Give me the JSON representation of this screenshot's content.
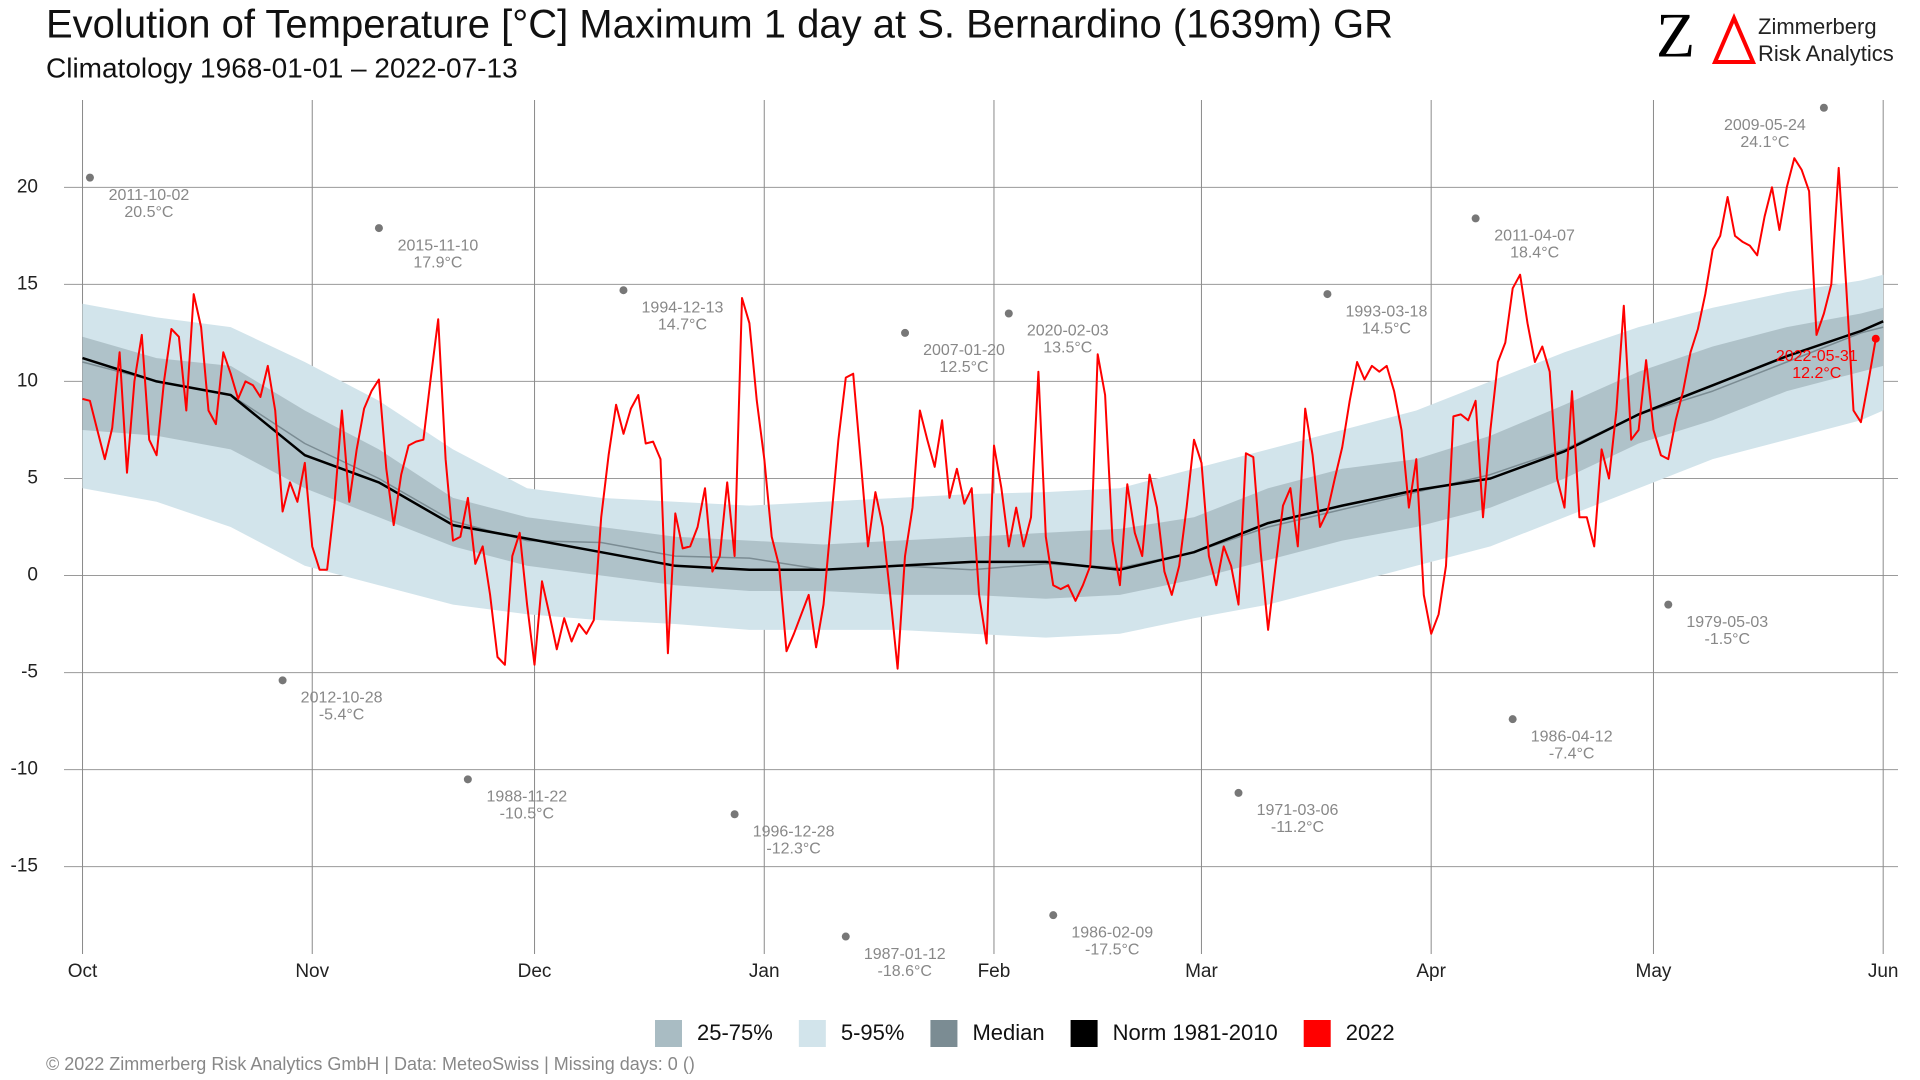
{
  "title": "Evolution of Temperature [°C] Maximum 1 day at S. Bernardino (1639m) GR",
  "subtitle": "Climatology 1968-01-01 – 2022-07-13",
  "logo": {
    "mark": "Z",
    "line1": "Zimmerberg",
    "line2": "Risk Analytics"
  },
  "footer": "©  2022 Zimmerberg Risk Analytics GmbH | Data: MeteoSwiss | Missing days: 0 ()",
  "chart_data": {
    "type": "line",
    "xlim": [
      -2.5,
      245
    ],
    "ylim": [
      -19.5,
      24.5
    ],
    "xticks": [
      {
        "value": 0,
        "label": "Oct"
      },
      {
        "value": 31,
        "label": "Nov"
      },
      {
        "value": 61,
        "label": "Dec"
      },
      {
        "value": 92,
        "label": "Jan"
      },
      {
        "value": 123,
        "label": "Feb"
      },
      {
        "value": 151,
        "label": "Mar"
      },
      {
        "value": 182,
        "label": "Apr"
      },
      {
        "value": 212,
        "label": "May"
      },
      {
        "value": 243,
        "label": "Jun"
      }
    ],
    "yticks": [
      -15,
      -10,
      -5,
      0,
      5,
      10,
      15,
      20
    ],
    "grid": true,
    "bands": [
      {
        "name": "5-95%",
        "color": "#d2e4eb",
        "x": [
          0,
          10,
          20,
          30,
          40,
          50,
          60,
          70,
          80,
          90,
          100,
          110,
          120,
          130,
          140,
          150,
          160,
          170,
          180,
          190,
          200,
          210,
          220,
          230,
          240,
          243
        ],
        "lower": [
          4.5,
          3.8,
          2.5,
          0.5,
          -0.5,
          -1.5,
          -2.0,
          -2.3,
          -2.5,
          -2.8,
          -2.8,
          -2.8,
          -3.0,
          -3.2,
          -3.0,
          -2.2,
          -1.5,
          -0.5,
          0.5,
          1.5,
          3.0,
          4.5,
          6.0,
          7.0,
          8.0,
          8.5
        ],
        "upper": [
          14.0,
          13.3,
          12.8,
          11.0,
          9.0,
          6.5,
          4.5,
          4.0,
          3.8,
          3.6,
          3.8,
          4.0,
          4.2,
          4.3,
          4.5,
          5.5,
          6.5,
          7.5,
          8.5,
          10.0,
          11.5,
          12.8,
          13.8,
          14.6,
          15.2,
          15.5
        ]
      },
      {
        "name": "25-75%",
        "color": "#a9bcc3",
        "x": [
          0,
          10,
          20,
          30,
          40,
          50,
          60,
          70,
          80,
          90,
          100,
          110,
          120,
          130,
          140,
          150,
          160,
          170,
          180,
          190,
          200,
          210,
          220,
          230,
          240,
          243
        ],
        "lower": [
          7.5,
          7.2,
          6.5,
          4.5,
          3.0,
          1.5,
          0.5,
          0.0,
          -0.5,
          -0.8,
          -0.8,
          -1.0,
          -1.0,
          -1.2,
          -1.0,
          -0.2,
          0.8,
          1.8,
          2.5,
          3.5,
          5.0,
          6.8,
          8.0,
          9.5,
          10.5,
          10.8
        ],
        "upper": [
          12.3,
          11.2,
          10.8,
          8.5,
          6.5,
          4.0,
          3.0,
          2.5,
          2.0,
          1.8,
          1.6,
          1.8,
          2.0,
          2.2,
          2.4,
          3.0,
          4.5,
          5.5,
          6.0,
          7.2,
          8.8,
          10.5,
          11.8,
          12.8,
          13.5,
          13.8
        ]
      }
    ],
    "series": [
      {
        "name": "Median",
        "color": "#7b8c93",
        "width": 1.5,
        "x": [
          0,
          10,
          20,
          30,
          40,
          50,
          60,
          70,
          80,
          90,
          100,
          110,
          120,
          130,
          140,
          150,
          160,
          170,
          180,
          190,
          200,
          210,
          220,
          230,
          240,
          243
        ],
        "values": [
          11.0,
          10.0,
          9.3,
          6.8,
          5.0,
          2.8,
          1.8,
          1.7,
          1.0,
          0.9,
          0.3,
          0.5,
          0.3,
          0.6,
          0.4,
          1.2,
          2.5,
          3.4,
          4.3,
          5.2,
          6.5,
          8.3,
          9.5,
          11.0,
          12.5,
          12.8
        ]
      },
      {
        "name": "Norm 1981-2010",
        "color": "#000000",
        "width": 2.5,
        "x": [
          0,
          10,
          20,
          30,
          40,
          50,
          60,
          70,
          80,
          90,
          100,
          110,
          120,
          130,
          140,
          150,
          160,
          170,
          180,
          190,
          200,
          210,
          220,
          230,
          240,
          243
        ],
        "values": [
          11.2,
          10.0,
          9.3,
          6.2,
          4.8,
          2.6,
          1.9,
          1.2,
          0.5,
          0.3,
          0.3,
          0.5,
          0.7,
          0.7,
          0.3,
          1.2,
          2.7,
          3.6,
          4.4,
          5.0,
          6.4,
          8.3,
          9.8,
          11.3,
          12.6,
          13.1
        ]
      },
      {
        "name": "2022",
        "color": "#ff0000",
        "width": 2,
        "x": [
          0,
          1,
          2,
          3,
          4,
          5,
          6,
          7,
          8,
          9,
          10,
          11,
          12,
          13,
          14,
          15,
          16,
          17,
          18,
          19,
          20,
          21,
          22,
          23,
          24,
          25,
          26,
          27,
          28,
          29,
          30,
          31,
          32,
          33,
          34,
          35,
          36,
          37,
          38,
          39,
          40,
          41,
          42,
          43,
          44,
          45,
          46,
          47,
          48,
          49,
          50,
          51,
          52,
          53,
          54,
          55,
          56,
          57,
          58,
          59,
          60,
          61,
          62,
          63,
          64,
          65,
          66,
          67,
          68,
          69,
          70,
          71,
          72,
          73,
          74,
          75,
          76,
          77,
          78,
          79,
          80,
          81,
          82,
          83,
          84,
          85,
          86,
          87,
          88,
          89,
          90,
          91,
          92,
          93,
          94,
          95,
          96,
          97,
          98,
          99,
          100,
          101,
          102,
          103,
          104,
          105,
          106,
          107,
          108,
          109,
          110,
          111,
          112,
          113,
          114,
          115,
          116,
          117,
          118,
          119,
          120,
          121,
          122,
          123,
          124,
          125,
          126,
          127,
          128,
          129,
          130,
          131,
          132,
          133,
          134,
          135,
          136,
          137,
          138,
          139,
          140,
          141,
          142,
          143,
          144,
          145,
          146,
          147,
          148,
          149,
          150,
          151,
          152,
          153,
          154,
          155,
          156,
          157,
          158,
          159,
          160,
          161,
          162,
          163,
          164,
          165,
          166,
          167,
          168,
          169,
          170,
          171,
          172,
          173,
          174,
          175,
          176,
          177,
          178,
          179,
          180,
          181,
          182,
          183,
          184,
          185,
          186,
          187,
          188,
          189,
          190,
          191,
          192,
          193,
          194,
          195,
          196,
          197,
          198,
          199,
          200,
          201,
          202,
          203,
          204,
          205,
          206,
          207,
          208,
          209,
          210,
          211,
          212,
          213,
          214,
          215,
          216,
          217,
          218,
          219,
          220,
          221,
          222,
          223,
          224,
          225,
          226,
          227,
          228,
          229,
          230,
          231,
          232,
          233,
          234,
          235,
          236,
          237,
          238,
          239,
          240,
          241,
          242
        ],
        "values": [
          9.1,
          9.0,
          7.5,
          6.0,
          7.6,
          11.5,
          5.3,
          10.0,
          12.4,
          7.0,
          6.2,
          10.0,
          12.7,
          12.3,
          8.5,
          14.5,
          12.8,
          8.5,
          7.8,
          11.5,
          10.4,
          9.1,
          10.0,
          9.8,
          9.2,
          10.8,
          8.5,
          3.3,
          4.8,
          3.8,
          5.8,
          1.5,
          0.3,
          0.3,
          3.7,
          8.5,
          3.8,
          6.5,
          8.6,
          9.5,
          10.1,
          5.5,
          2.6,
          5.2,
          6.7,
          6.9,
          7.0,
          10.2,
          13.2,
          6.0,
          1.8,
          2.0,
          4.0,
          0.6,
          1.5,
          -1.0,
          -4.2,
          -4.6,
          1.0,
          2.2,
          -1.5,
          -4.6,
          -0.3,
          -2.0,
          -3.8,
          -2.2,
          -3.4,
          -2.5,
          -3.0,
          -2.3,
          3.0,
          6.2,
          8.8,
          7.3,
          8.6,
          9.3,
          6.8,
          6.9,
          6.0,
          -4.0,
          3.2,
          1.4,
          1.5,
          2.5,
          4.5,
          0.2,
          1.0,
          4.8,
          1.0,
          14.3,
          13.0,
          9.0,
          6.0,
          2.0,
          0.5,
          -3.9,
          -3.0,
          -2.0,
          -1.0,
          -3.7,
          -1.5,
          2.7,
          7.0,
          10.2,
          10.4,
          6.0,
          1.5,
          4.3,
          2.5,
          -1.0,
          -4.8,
          1.0,
          3.5,
          8.5,
          7.0,
          5.6,
          8.0,
          4.0,
          5.5,
          3.7,
          4.5,
          -1.0,
          -3.5,
          6.7,
          4.5,
          1.5,
          3.5,
          1.5,
          3.0,
          10.5,
          2.0,
          -0.5,
          -0.7,
          -0.5,
          -1.3,
          -0.5,
          0.5,
          11.4,
          9.3,
          1.8,
          -0.5,
          4.7,
          2.2,
          1.0,
          5.2,
          3.5,
          0.2,
          -1.0,
          0.5,
          3.5,
          7.0,
          5.8,
          1.0,
          -0.5,
          1.5,
          0.5,
          -1.5,
          6.3,
          6.1,
          1.2,
          -2.8,
          0.5,
          3.6,
          4.5,
          1.5,
          8.6,
          6.2,
          2.5,
          3.3,
          5.0,
          6.6,
          9.0,
          11.0,
          10.1,
          10.8,
          10.5,
          10.8,
          9.5,
          7.5,
          3.5,
          6.0,
          -1.0,
          -3.0,
          -2.0,
          0.5,
          8.2,
          8.3,
          8.0,
          9.0,
          3.0,
          7.5,
          11.0,
          12.0,
          14.8,
          15.5,
          13.0,
          11.0,
          11.8,
          10.5,
          5.0,
          3.5,
          9.5,
          3.0,
          3.0,
          1.5,
          6.5,
          5.0,
          8.5,
          13.9,
          7.0,
          7.5,
          11.1,
          7.5,
          6.2,
          6.0,
          8.0,
          9.5,
          11.5,
          12.7,
          14.5,
          16.8,
          17.5,
          19.5,
          17.5,
          17.2,
          17.0,
          16.5,
          18.5,
          20.0,
          17.8,
          20.0,
          21.5,
          20.9,
          19.8,
          12.4,
          13.5,
          15.0,
          21.0,
          15.0,
          8.5,
          7.9,
          10.0,
          12.2
        ]
      }
    ],
    "record_color": "#777777",
    "records": [
      {
        "date": "2011-10-02",
        "x": 1,
        "value": 20.5,
        "value_label": "20.5°C"
      },
      {
        "date": "2012-10-28",
        "x": 27,
        "value": -5.4,
        "value_label": "-5.4°C"
      },
      {
        "date": "2015-11-10",
        "x": 40,
        "value": 17.9,
        "value_label": "17.9°C"
      },
      {
        "date": "1988-11-22",
        "x": 52,
        "value": -10.5,
        "value_label": "-10.5°C"
      },
      {
        "date": "1994-12-13",
        "x": 73,
        "value": 14.7,
        "value_label": "14.7°C"
      },
      {
        "date": "1996-12-28",
        "x": 88,
        "value": -12.3,
        "value_label": "-12.3°C"
      },
      {
        "date": "1987-01-12",
        "x": 103,
        "value": -18.6,
        "value_label": "-18.6°C"
      },
      {
        "date": "2007-01-20",
        "x": 111,
        "value": 12.5,
        "value_label": "12.5°C"
      },
      {
        "date": "2020-02-03",
        "x": 125,
        "value": 13.5,
        "value_label": "13.5°C"
      },
      {
        "date": "1986-02-09",
        "x": 131,
        "value": -17.5,
        "value_label": "-17.5°C"
      },
      {
        "date": "1971-03-06",
        "x": 156,
        "value": -11.2,
        "value_label": "-11.2°C"
      },
      {
        "date": "1993-03-18",
        "x": 168,
        "value": 14.5,
        "value_label": "14.5°C"
      },
      {
        "date": "2011-04-07",
        "x": 188,
        "value": 18.4,
        "value_label": "18.4°C"
      },
      {
        "date": "1986-04-12",
        "x": 193,
        "value": -7.4,
        "value_label": "-7.4°C"
      },
      {
        "date": "1979-05-03",
        "x": 214,
        "value": -1.5,
        "value_label": "-1.5°C"
      },
      {
        "date": "2009-05-24",
        "x": 235,
        "value": 24.1,
        "value_label": "24.1°C"
      },
      {
        "date": "2022-05-31",
        "x": 242,
        "value": 12.2,
        "value_label": "12.2°C",
        "color": "#ff0000"
      }
    ]
  }
}
